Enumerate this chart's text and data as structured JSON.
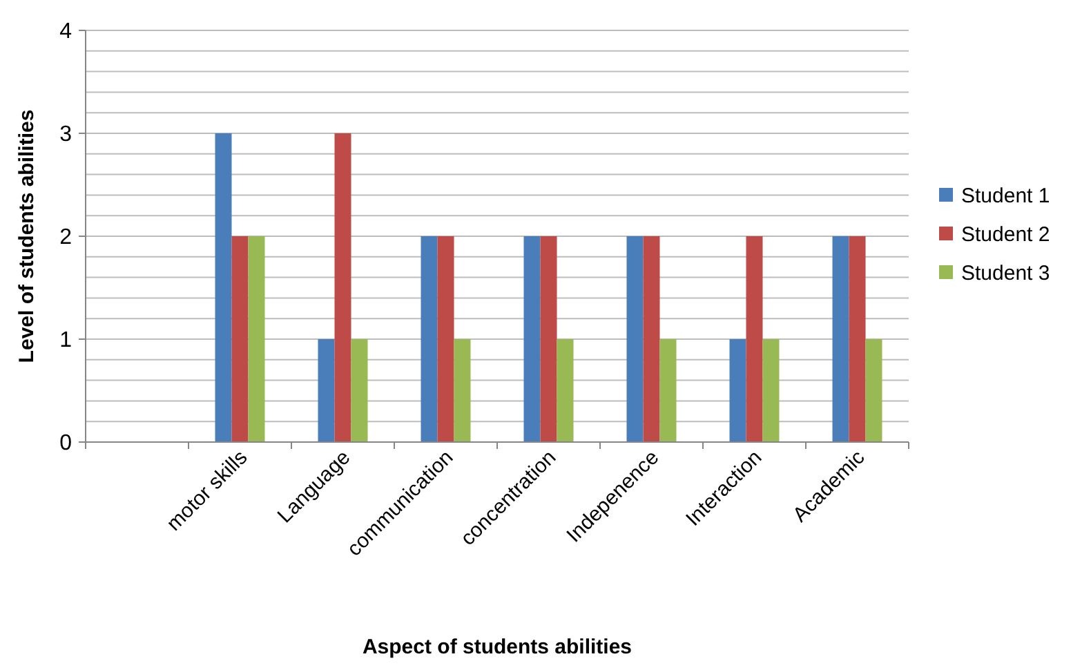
{
  "chart_data": {
    "type": "bar",
    "xlabel": "Aspect of students abilities",
    "ylabel": "Level of students abilities",
    "categories": [
      null,
      "motor skills",
      "Language",
      "communication",
      "concentration",
      "Indepenence",
      "Interaction",
      "Academic"
    ],
    "series": [
      {
        "name": "Student 1",
        "color": "#4a7ebb",
        "values": [
          null,
          3,
          1,
          2,
          2,
          2,
          1,
          2
        ]
      },
      {
        "name": "Student 2",
        "color": "#be4b48",
        "values": [
          null,
          2,
          3,
          2,
          2,
          2,
          2,
          2
        ]
      },
      {
        "name": "Student 3",
        "color": "#98b954",
        "values": [
          null,
          2,
          1,
          1,
          1,
          1,
          1,
          1
        ]
      }
    ],
    "ylim": [
      0,
      4
    ],
    "yticks": [
      0,
      {
        "value": 0.2,
        "label": null
      },
      {
        "value": 0.4,
        "label": null
      },
      {
        "value": 0.6,
        "label": null
      },
      {
        "value": 0.8,
        "label": null
      },
      1,
      {
        "value": 1.2,
        "label": null
      },
      {
        "value": 1.4,
        "label": null
      },
      {
        "value": 1.6,
        "label": null
      },
      {
        "value": 1.8,
        "label": null
      },
      2,
      {
        "value": 2.2,
        "label": null
      },
      {
        "value": 2.4,
        "label": null
      },
      {
        "value": 2.6,
        "label": null
      },
      {
        "value": 2.8,
        "label": null
      },
      3,
      {
        "value": 3.2,
        "label": null
      },
      {
        "value": 3.4,
        "label": null
      },
      {
        "value": 3.6,
        "label": null
      },
      {
        "value": 3.8,
        "label": null
      },
      4
    ],
    "grid": "y",
    "legend": "right"
  }
}
